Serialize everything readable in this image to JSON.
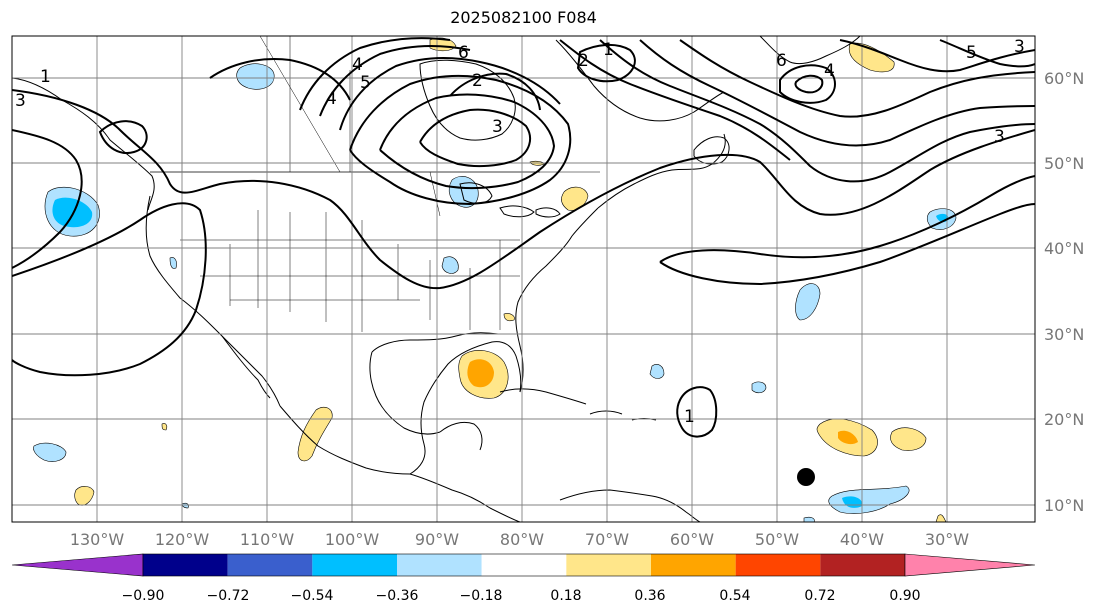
{
  "title": "2025082100 F084",
  "longitude_labels": [
    "130°W",
    "120°W",
    "110°W",
    "100°W",
    "90°W",
    "80°W",
    "70°W",
    "60°W",
    "50°W",
    "40°W",
    "30°W"
  ],
  "latitude_labels": [
    "60°N",
    "50°N",
    "40°N",
    "30°N",
    "20°N",
    "10°N"
  ],
  "contour_labels": [
    "1",
    "3",
    "4",
    "6",
    "2",
    "2",
    "1",
    "5",
    "4",
    "3",
    "4",
    "6",
    "5",
    "1",
    "3",
    "3"
  ],
  "colorbar": {
    "tick_labels": [
      "−0.90",
      "−0.72",
      "−0.54",
      "−0.36",
      "−0.18",
      "0.18",
      "0.36",
      "0.54",
      "0.72",
      "0.90"
    ],
    "colors": [
      "#9932cc",
      "#00008b",
      "#3a5fcd",
      "#00bfff",
      "#b0e2ff",
      "#ffffff",
      "#ffe68a",
      "#ffa500",
      "#ff4500",
      "#b22222",
      "#ff82ab"
    ]
  },
  "marker": {
    "name": "storm-center-dot",
    "lon": -46,
    "lat": 13
  }
}
